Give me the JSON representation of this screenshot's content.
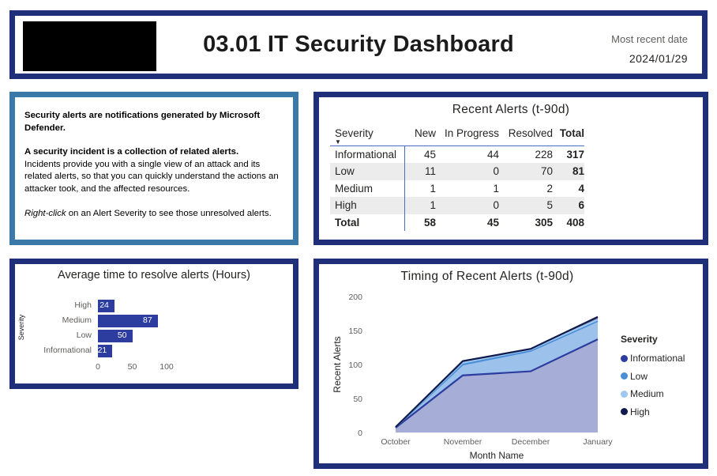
{
  "header": {
    "title": "03.01 IT Security Dashboard",
    "recent_date_label": "Most recent date",
    "recent_date_value": "2024/01/29"
  },
  "info": {
    "p1_bold": "Security alerts are notifications generated by Microsoft Defender.",
    "p2_bold": "A security incident is a collection of related alerts.",
    "p2_text": "Incidents provide you with a single view of an attack and its related alerts, so that you can quickly understand the actions an attacker took, and the affected resources.",
    "p3_italic": "Right-click",
    "p3_text": " on an Alert Severity to see those unresolved alerts."
  },
  "recent_alerts": {
    "title": "Recent Alerts (t-90d)",
    "columns": [
      "Severity",
      "New",
      "In Progress",
      "Resolved",
      "Total"
    ],
    "rows": [
      {
        "severity": "Informational",
        "new": "45",
        "in_progress": "44",
        "resolved": "228",
        "total": "317"
      },
      {
        "severity": "Low",
        "new": "11",
        "in_progress": "0",
        "resolved": "70",
        "total": "81"
      },
      {
        "severity": "Medium",
        "new": "1",
        "in_progress": "1",
        "resolved": "2",
        "total": "4"
      },
      {
        "severity": "High",
        "new": "1",
        "in_progress": "0",
        "resolved": "5",
        "total": "6"
      }
    ],
    "total_row": {
      "severity": "Total",
      "new": "58",
      "in_progress": "45",
      "resolved": "305",
      "total": "408"
    }
  },
  "avg_time": {
    "title": "Average time to resolve alerts (Hours)",
    "ylabel": "Severity"
  },
  "timing": {
    "title": "Timing of Recent Alerts (t-90d)",
    "legend_title": "Severity"
  },
  "colors": {
    "frame": "#1f2f7a",
    "info_frame": "#3b7aa8",
    "bar": "#2c3d9f",
    "informational": "#2c3d9f",
    "low": "#4a8ed8",
    "medium": "#9fc8f0",
    "high": "#0f1a4d"
  },
  "chart_data": [
    {
      "type": "bar",
      "orientation": "horizontal",
      "title": "Average time to resolve alerts (Hours)",
      "ylabel": "Severity",
      "xlabel": "",
      "categories": [
        "High",
        "Medium",
        "Low",
        "Informational"
      ],
      "values": [
        24,
        87,
        50,
        21
      ],
      "xticks": [
        0,
        50,
        100
      ],
      "xlim": [
        0,
        100
      ],
      "grid": false
    },
    {
      "type": "area",
      "stacked": true,
      "title": "Timing of Recent Alerts (t-90d)",
      "xlabel": "Month Name",
      "ylabel": "Recent Alerts",
      "categories": [
        "October",
        "November",
        "December",
        "January"
      ],
      "yticks": [
        0,
        50,
        100,
        150,
        200
      ],
      "ylim": [
        0,
        200
      ],
      "legend_position": "right",
      "series": [
        {
          "name": "Informational",
          "values": [
            7,
            84,
            90,
            137
          ]
        },
        {
          "name": "Low",
          "values": [
            1,
            16,
            30,
            27
          ]
        },
        {
          "name": "Medium",
          "values": [
            0,
            3,
            2,
            2
          ]
        },
        {
          "name": "High",
          "values": [
            0,
            2,
            1,
            4
          ]
        }
      ]
    }
  ]
}
